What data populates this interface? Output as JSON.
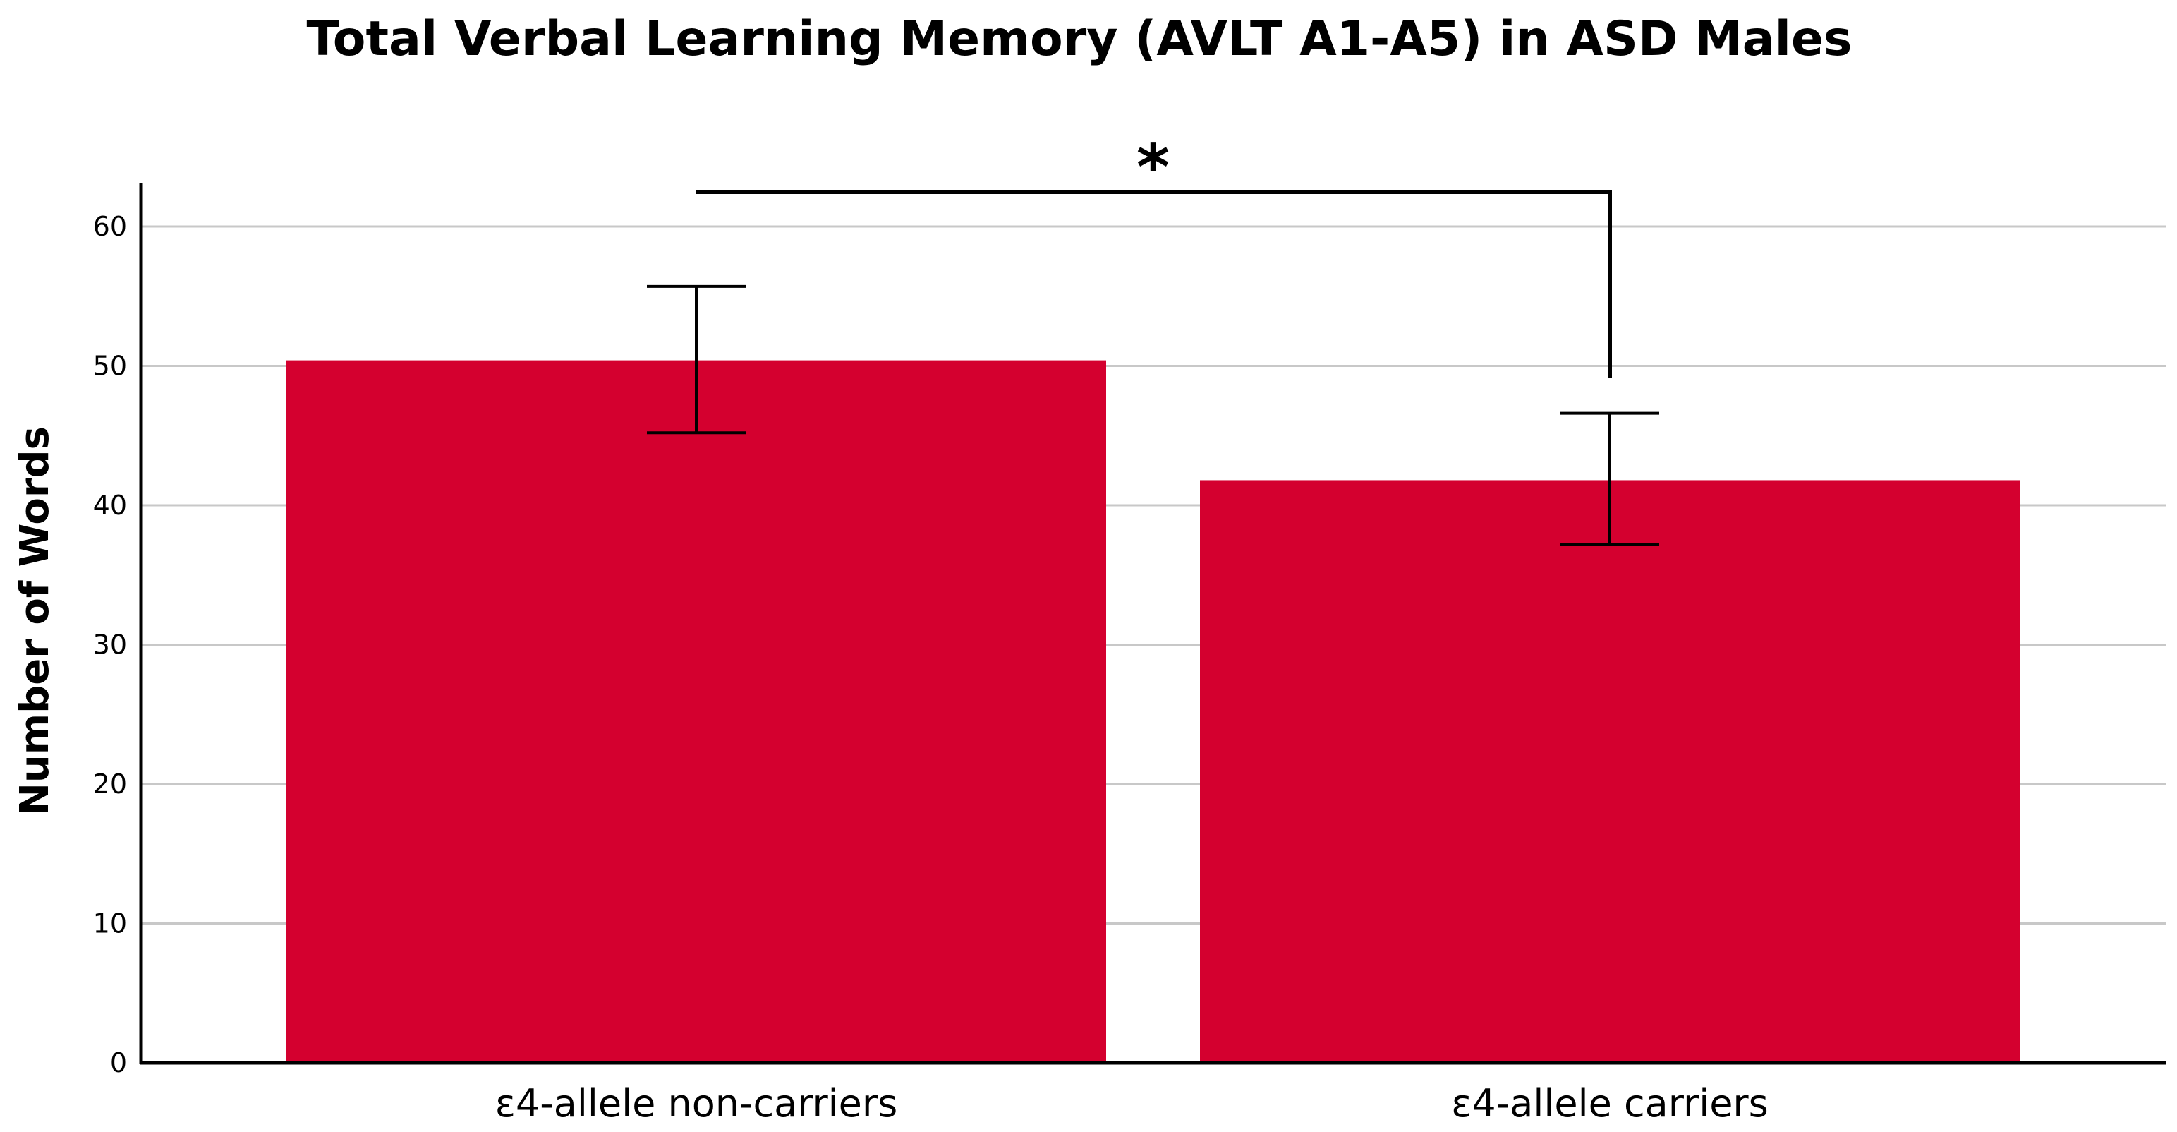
{
  "chart_data": {
    "type": "bar",
    "title": "Total Verbal Learning Memory (AVLT A1-A5) in ASD Males",
    "xlabel": "",
    "ylabel": "Number of Words",
    "categories": [
      "ε4-allele non-carriers",
      "ε4-allele carriers"
    ],
    "values": [
      50.4,
      41.8
    ],
    "error_bars": [
      {
        "low": 45.2,
        "high": 55.7
      },
      {
        "low": 37.2,
        "high": 46.6
      }
    ],
    "ylim": [
      0,
      63
    ],
    "yticks": [
      0,
      10,
      20,
      30,
      40,
      50,
      60
    ],
    "grid": true,
    "bar_color": "#d4002f",
    "significance": {
      "label": "*",
      "between": [
        0,
        1
      ]
    }
  }
}
